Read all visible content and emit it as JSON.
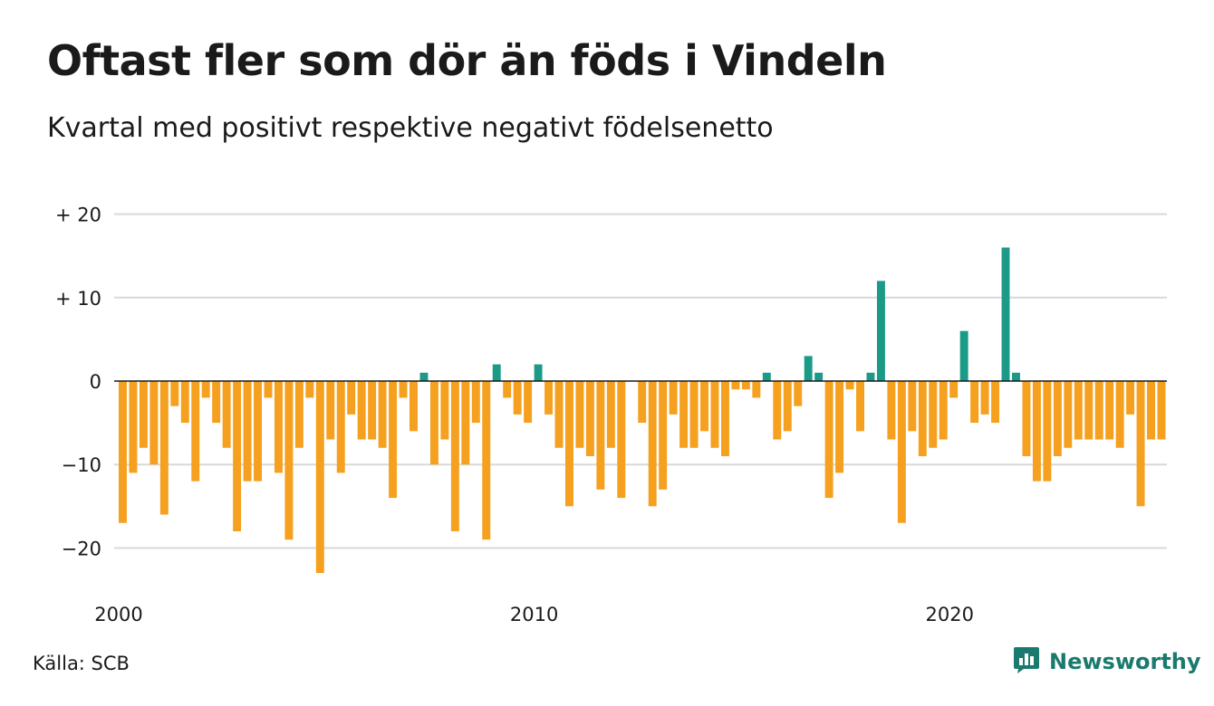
{
  "header": {
    "title": "Oftast fler som dör än föds i Vindeln",
    "subtitle": "Kvartal med positivt respektive negativt födelsenetto"
  },
  "footer": {
    "source": "Källa: SCB",
    "brand": "Newsworthy",
    "logo_icon": "bar-chart-speech-bubble-icon"
  },
  "colors": {
    "positive": "#1b9a88",
    "negative": "#f5a01e",
    "grid": "#d9d9d9",
    "baseline": "#1a1a1a",
    "brand": "#1a7a6e"
  },
  "chart_data": {
    "type": "bar",
    "x_start": "2000-Q1",
    "x_ticks": [
      {
        "label": "2000",
        "year": 2000
      },
      {
        "label": "2010",
        "year": 2010
      },
      {
        "label": "2020",
        "year": 2020
      }
    ],
    "y_ticks": [
      {
        "label": "+ 20",
        "value": 20
      },
      {
        "label": "+ 10",
        "value": 10
      },
      {
        "label": "0",
        "value": 0
      },
      {
        "label": "−10",
        "value": -10
      },
      {
        "label": "−20",
        "value": -20
      }
    ],
    "ylim": [
      -25,
      20
    ],
    "grid": true,
    "values": [
      -17,
      -11,
      -8,
      -10,
      -16,
      -3,
      -5,
      -12,
      -2,
      -5,
      -8,
      -18,
      -12,
      -12,
      -2,
      -11,
      -19,
      -8,
      -2,
      -23,
      -7,
      -11,
      -4,
      -7,
      -7,
      -8,
      -14,
      -2,
      -6,
      1,
      -10,
      -7,
      -18,
      -10,
      -5,
      -19,
      2,
      -2,
      -4,
      -5,
      2,
      -4,
      -8,
      -15,
      -8,
      -9,
      -13,
      -8,
      -14,
      0,
      -5,
      -15,
      -13,
      -4,
      -8,
      -8,
      -6,
      -8,
      -9,
      -1,
      -1,
      -2,
      1,
      -7,
      -6,
      -3,
      3,
      1,
      -14,
      -11,
      -1,
      -6,
      1,
      12,
      -7,
      -17,
      -6,
      -9,
      -8,
      -7,
      -2,
      6,
      -5,
      -4,
      -5,
      16,
      1,
      -9,
      -12,
      -12,
      -9,
      -8,
      -7,
      -7,
      -7,
      -7,
      -8,
      -4,
      -15,
      -7,
      -7
    ]
  }
}
